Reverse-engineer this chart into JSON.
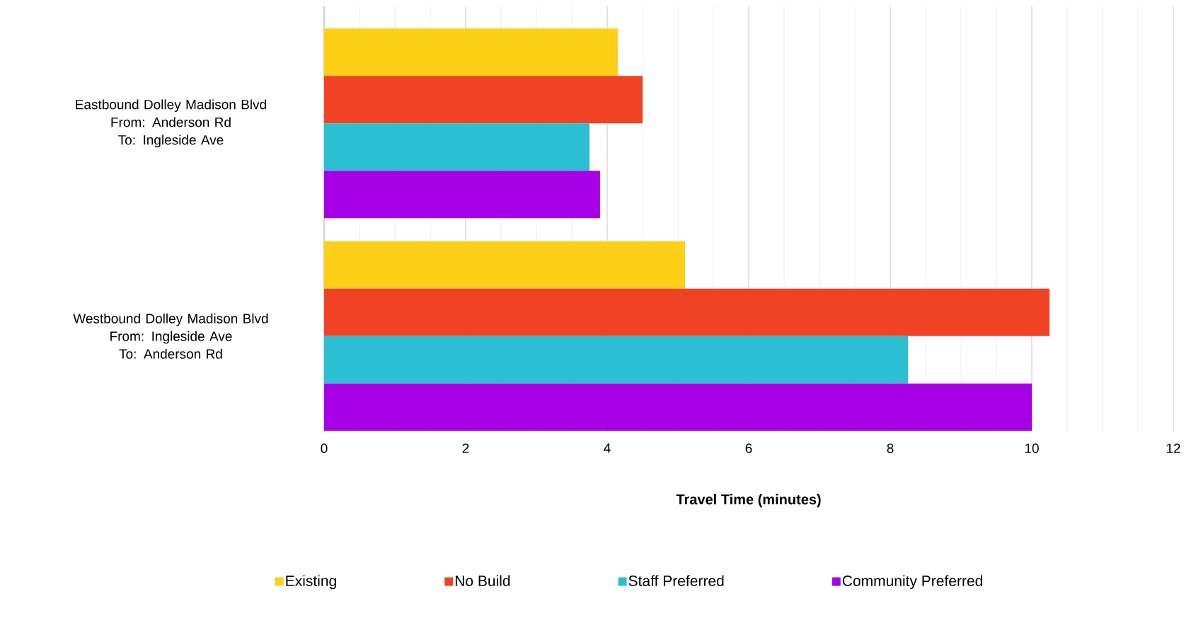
{
  "chart_data": {
    "type": "bar",
    "orientation": "horizontal",
    "xlabel": "Travel Time (minutes)",
    "categories": [
      "Eastbound Dolley Madison Blvd\nFrom: Anderson Rd\nTo: Ingleside Ave",
      "Westbound Dolley Madison Blvd\nFrom: Ingleside Ave\nTo: Anderson Rd"
    ],
    "series": [
      {
        "name": "Existing",
        "color": "#fdd017",
        "values": [
          4.15,
          5.1
        ]
      },
      {
        "name": "No Build",
        "color": "#f04325",
        "values": [
          4.5,
          10.25
        ]
      },
      {
        "name": "Staff Preferred",
        "color": "#2bbfd3",
        "values": [
          3.75,
          8.25
        ]
      },
      {
        "name": "Community Preferred",
        "color": "#a800e6",
        "values": [
          3.9,
          10.0
        ]
      }
    ],
    "xlim": [
      0,
      12
    ],
    "xticks": [
      0,
      2,
      4,
      6,
      8,
      10,
      12
    ],
    "grid": "x",
    "legend": "bottom"
  }
}
